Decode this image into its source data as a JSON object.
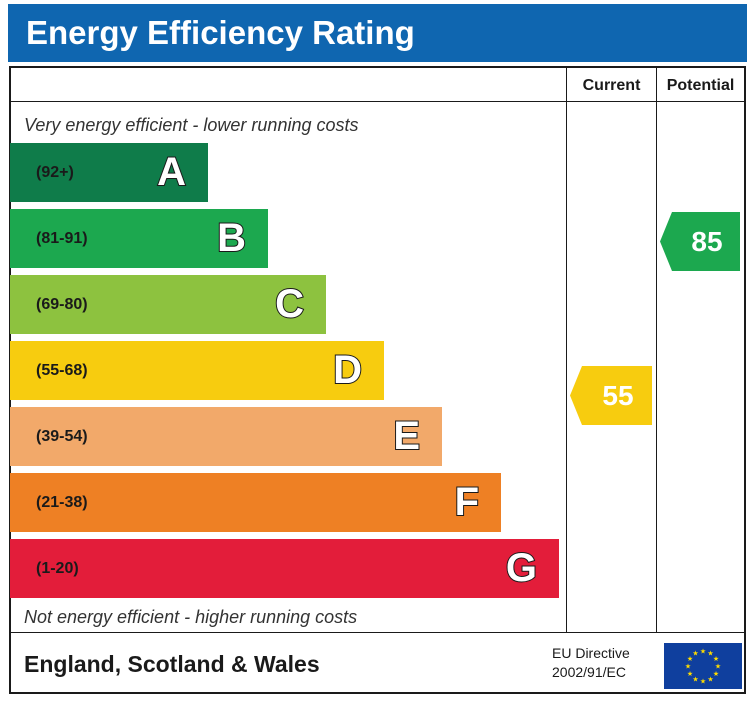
{
  "title": "Energy Efficiency Rating",
  "columns": {
    "current": "Current",
    "potential": "Potential"
  },
  "notes": {
    "top": "Very energy efficient - lower running costs",
    "bottom": "Not energy efficient - higher running costs"
  },
  "footer": {
    "country": "England, Scotland & Wales",
    "directive_line1": "EU Directive",
    "directive_line2": "2002/91/EC"
  },
  "chart_data": {
    "type": "bar",
    "title": "Energy Efficiency Rating",
    "bands": [
      {
        "letter": "A",
        "range": "(92+)",
        "color": "#0f7c4a"
      },
      {
        "letter": "B",
        "range": "(81-91)",
        "color": "#1ca84f"
      },
      {
        "letter": "C",
        "range": "(69-80)",
        "color": "#8dc23f"
      },
      {
        "letter": "D",
        "range": "(55-68)",
        "color": "#f7cc0f"
      },
      {
        "letter": "E",
        "range": "(39-54)",
        "color": "#f2a96a"
      },
      {
        "letter": "F",
        "range": "(21-38)",
        "color": "#ee8024"
      },
      {
        "letter": "G",
        "range": "(1-20)",
        "color": "#e31d3a"
      }
    ],
    "current": {
      "value": "55",
      "band": "D",
      "color": "#f7cc0f"
    },
    "potential": {
      "value": "85",
      "band": "B",
      "color": "#1ca84f"
    }
  }
}
